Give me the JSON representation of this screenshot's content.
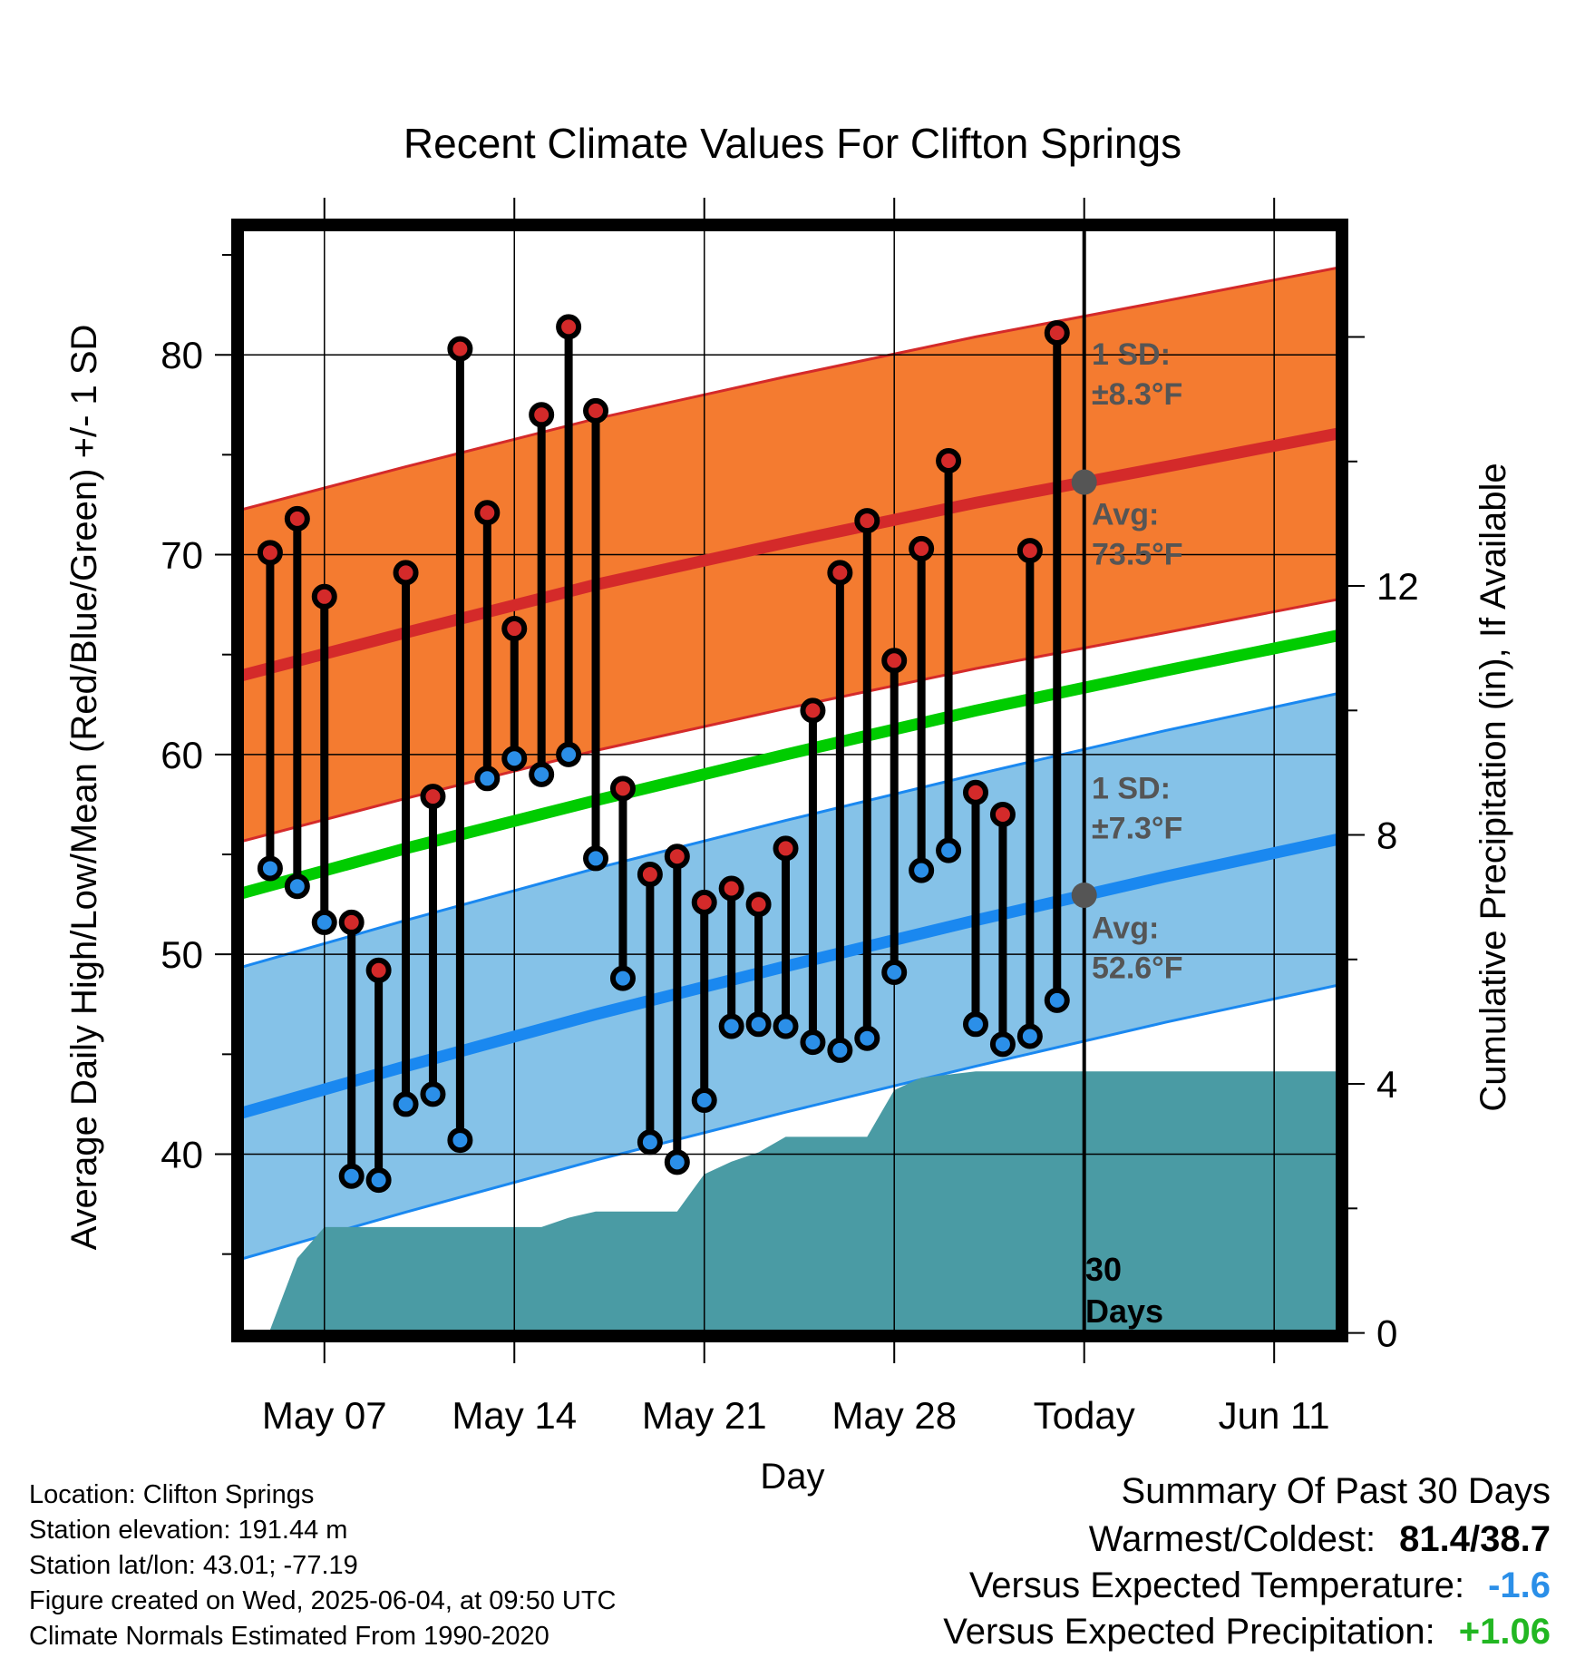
{
  "chart_data": {
    "type": "line",
    "title": "Recent Climate Values For Clifton Springs",
    "xlabel": "Day",
    "ylabel": "Average Daily High/Low/Mean (Red/Blue/Green) +/- 1 SD",
    "ylabel_right": "Cumulative Precipitation (in), If Available",
    "x_ticks": [
      {
        "day": 7,
        "label": "May 07"
      },
      {
        "day": 14,
        "label": "May 14"
      },
      {
        "day": 21,
        "label": "May 21"
      },
      {
        "day": 28,
        "label": "May 28"
      },
      {
        "day": 35,
        "label": "Today"
      },
      {
        "day": 42,
        "label": "Jun 11"
      }
    ],
    "xlim": [
      3.8,
      44.5
    ],
    "ylim": [
      30.9,
      86.5
    ],
    "y_ticks": [
      40,
      50,
      60,
      70,
      80
    ],
    "y2lim": [
      -0.05,
      17.8
    ],
    "y2_ticks": [
      0,
      4,
      8,
      12
    ],
    "grid": true,
    "today_line": {
      "day": 35,
      "label": "30\nDays"
    },
    "normals": {
      "days": [
        3.8,
        10,
        17,
        24,
        31,
        38,
        44.5
      ],
      "high_avg": [
        63.9,
        66.1,
        68.5,
        70.6,
        72.6,
        74.4,
        76.1
      ],
      "high_sd": 8.3,
      "low_avg": [
        42,
        44.4,
        47,
        49.4,
        51.7,
        53.9,
        55.8
      ],
      "low_sd": 7.3,
      "mean": [
        53,
        55.3,
        57.7,
        60,
        62.2,
        64.2,
        66
      ]
    },
    "series": [
      {
        "name": "High",
        "color": "#d42a2a",
        "days": [
          5,
          6,
          7,
          8,
          9,
          10,
          11,
          12,
          13,
          14,
          15,
          16,
          17,
          18,
          19,
          20,
          21,
          22,
          23,
          24,
          25,
          26,
          27,
          28,
          29,
          30,
          31,
          32,
          33,
          34
        ],
        "values": [
          70.1,
          71.8,
          67.9,
          51.6,
          49.2,
          69.1,
          57.9,
          80.3,
          72.1,
          66.3,
          77,
          81.4,
          77.2,
          58.3,
          54,
          54.9,
          52.6,
          53.3,
          52.5,
          55.3,
          62.2,
          69.1,
          71.7,
          64.7,
          70.3,
          74.7,
          58.1,
          57,
          70.2,
          81.1
        ]
      },
      {
        "name": "Low",
        "color": "#2b8fe8",
        "days": [
          5,
          6,
          7,
          8,
          9,
          10,
          11,
          12,
          13,
          14,
          15,
          16,
          17,
          18,
          19,
          20,
          21,
          22,
          23,
          24,
          25,
          26,
          27,
          28,
          29,
          30,
          31,
          32,
          33,
          34
        ],
        "values": [
          54.3,
          53.4,
          51.6,
          38.9,
          38.7,
          42.5,
          43,
          40.7,
          58.8,
          59.8,
          59,
          60,
          54.8,
          48.8,
          40.6,
          39.6,
          42.7,
          46.4,
          46.5,
          46.4,
          45.6,
          45.2,
          45.8,
          49.1,
          54.2,
          55.2,
          46.5,
          45.5,
          45.9,
          47.7
        ]
      },
      {
        "name": "Cumulative Precipitation",
        "days": [
          3.8,
          5,
          6,
          7,
          8,
          9,
          10,
          11,
          12,
          13,
          14,
          15,
          16,
          17,
          18,
          19,
          20,
          21,
          22,
          23,
          24,
          25,
          26,
          27,
          28,
          29,
          30,
          31,
          32,
          33,
          34,
          35,
          36,
          44.5
        ],
        "values": [
          0,
          0.05,
          1.2,
          1.7,
          1.7,
          1.7,
          1.7,
          1.7,
          1.7,
          1.7,
          1.7,
          1.7,
          1.85,
          1.95,
          1.95,
          1.95,
          1.95,
          2.55,
          2.75,
          2.9,
          3.15,
          3.15,
          3.15,
          3.15,
          3.9,
          4.1,
          4.15,
          4.2,
          4.2,
          4.2,
          4.2,
          4.2,
          4.2,
          4.2
        ]
      }
    ],
    "annotations": {
      "high_sd": "1 SD:\n±8.3°F",
      "high_avg": "Avg:\n73.5°F",
      "low_sd": "1 SD:\n±7.3°F",
      "low_avg": "Avg:\n52.6°F"
    },
    "colors": {
      "high_band": "#f47b30",
      "high_line": "#d42a2a",
      "low_band": "#85c2e8",
      "low_line": "#1a88f0",
      "mean_line": "#00cc00",
      "precip": "#4a9ba4",
      "avg_marker": "#555555",
      "negative": "#2b8fe8",
      "positive": "#22b722"
    }
  },
  "meta": {
    "location": "Location: Clifton Springs",
    "elevation": "Station elevation: 191.44 m",
    "latlon": "Station lat/lon: 43.01; -77.19",
    "created": "Figure created on Wed, 2025-06-04, at 09:50 UTC",
    "normals": "Climate Normals Estimated From 1990-2020"
  },
  "summary": {
    "heading": "Summary Of Past 30 Days",
    "warm_cold_label": "Warmest/Coldest:",
    "warm_cold_value": "81.4/38.7",
    "temp_label": "Versus Expected Temperature:",
    "temp_value": "-1.6",
    "precip_label": "Versus Expected Precipitation:",
    "precip_value": "+1.06"
  }
}
